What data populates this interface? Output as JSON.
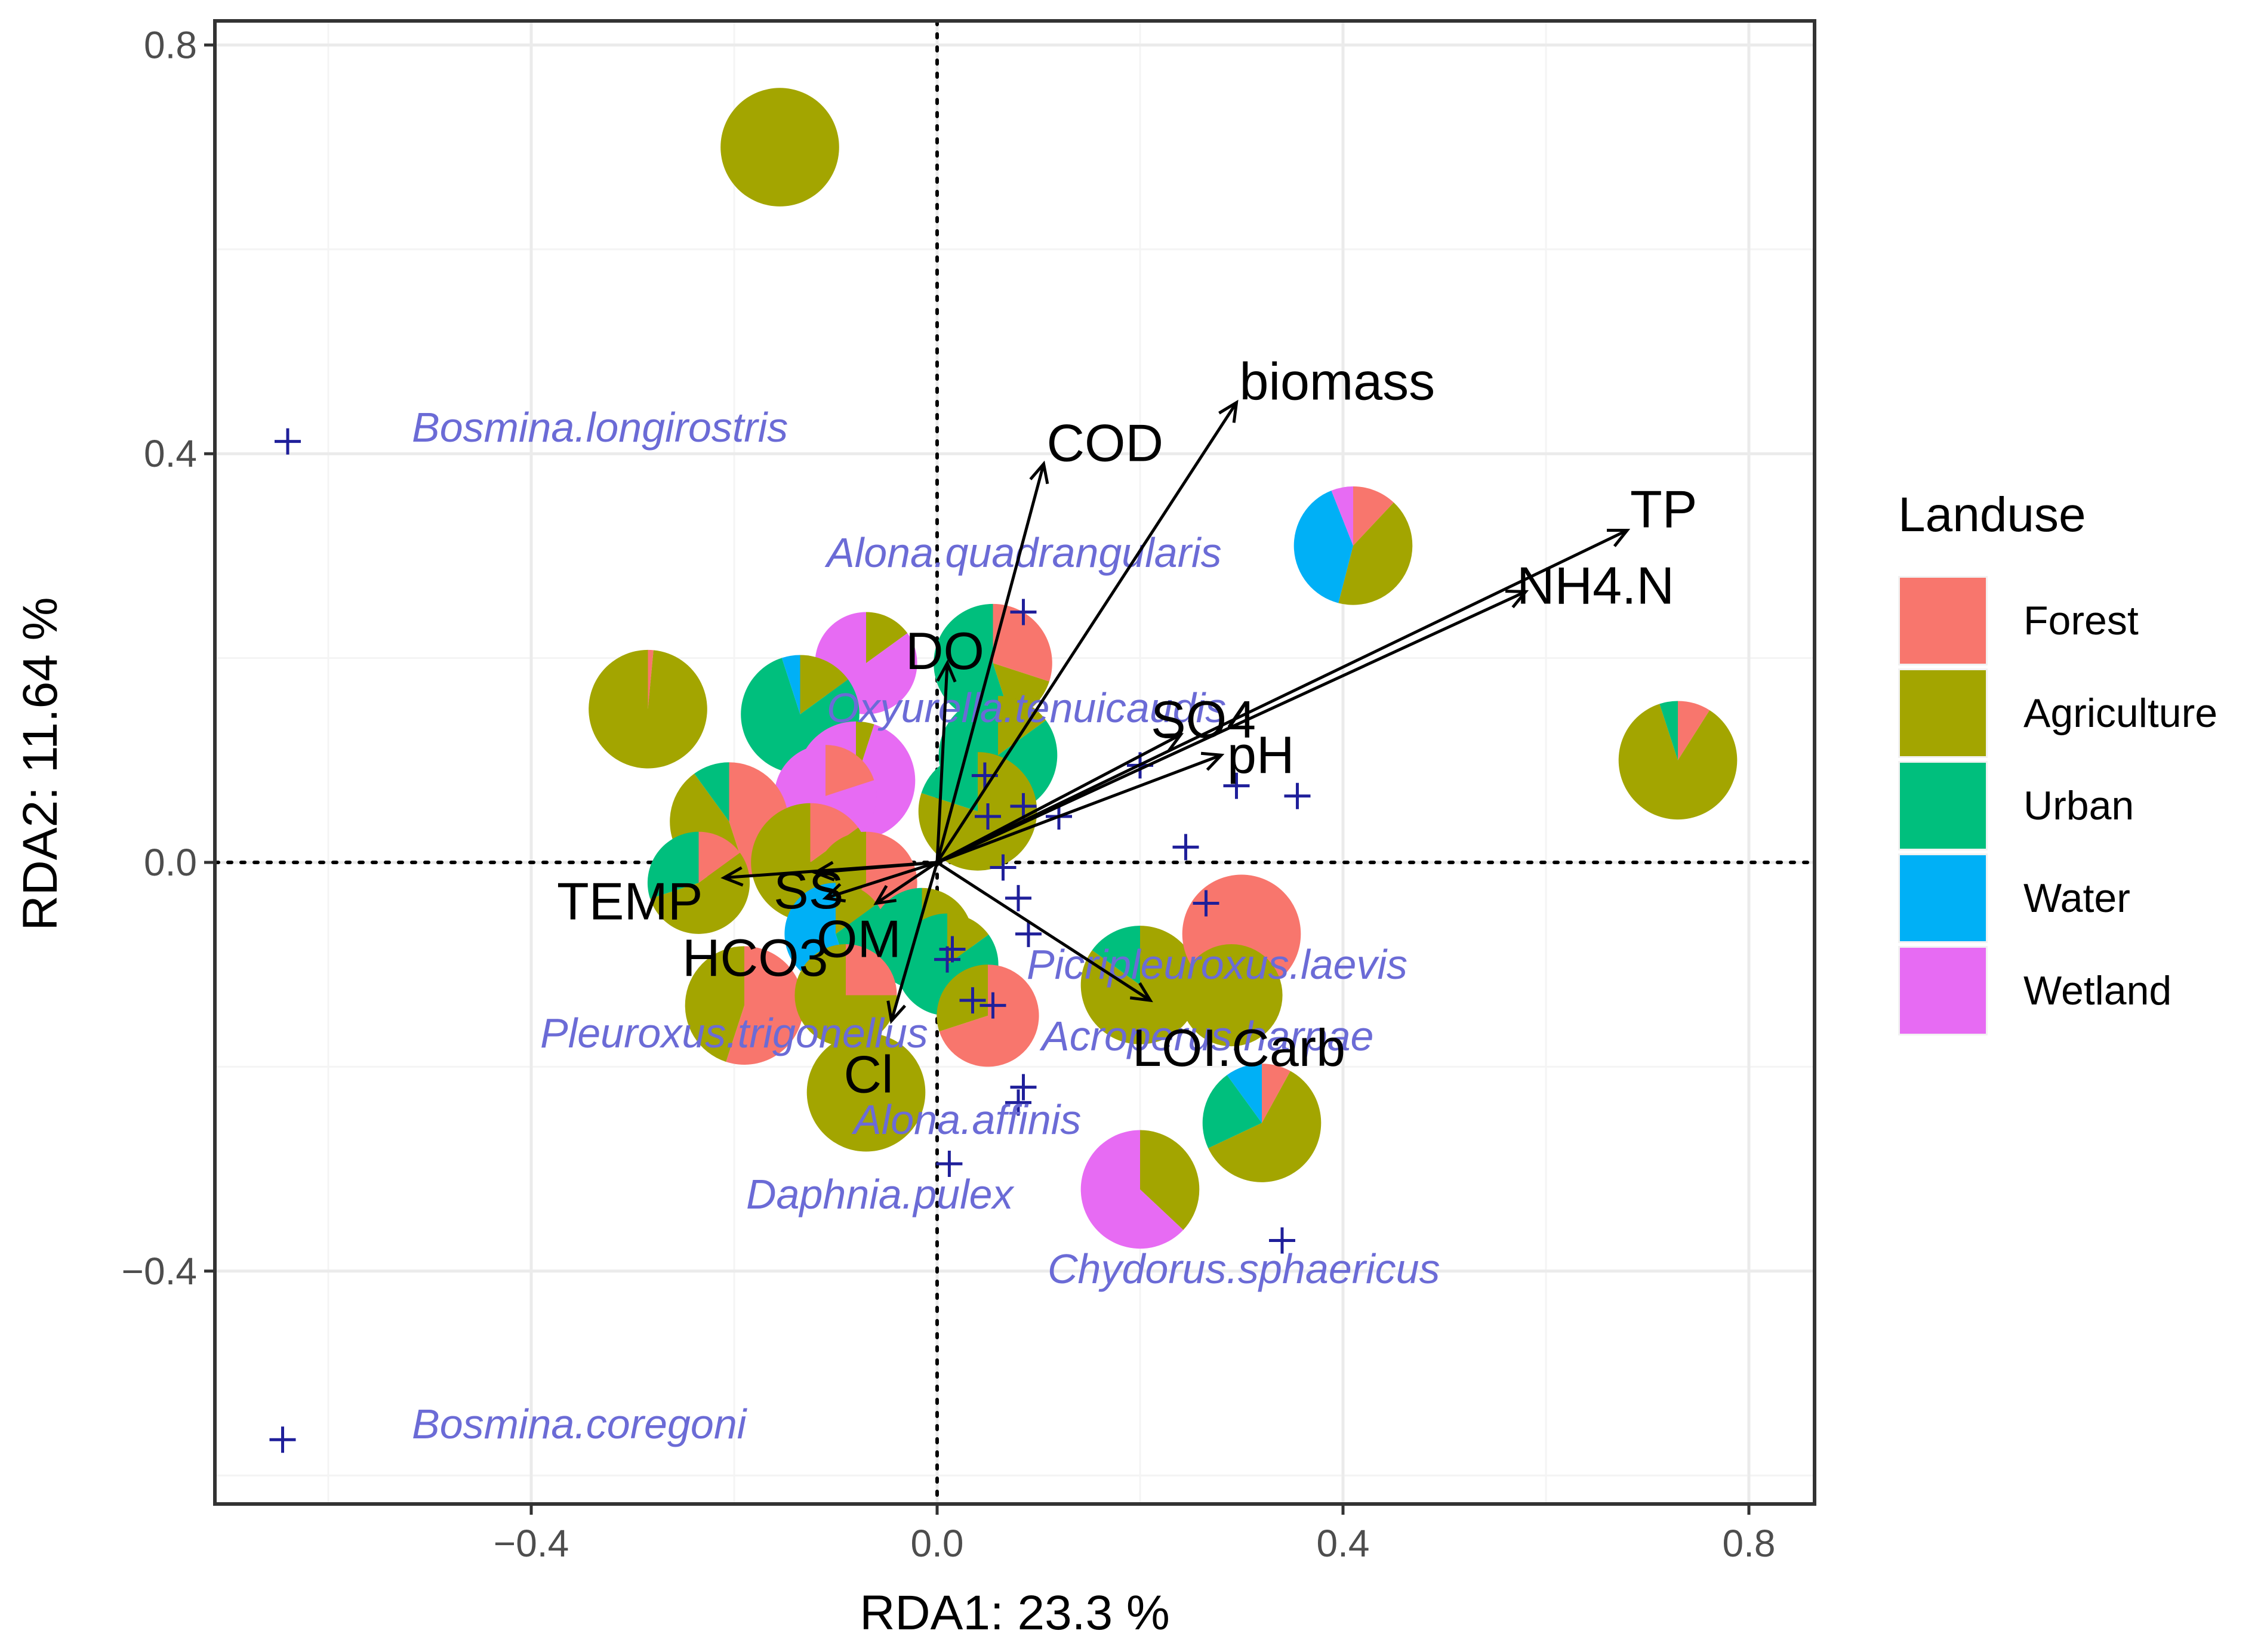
{
  "chart_data": {
    "type": "scatter",
    "xlabel": "RDA1: 23.3 %",
    "ylabel": "RDA2: 11.64 %",
    "xlim": [
      -0.72,
      0.86
    ],
    "ylim": [
      -0.63,
      0.83
    ],
    "x_ticks": [
      -0.4,
      0.0,
      0.4,
      0.8
    ],
    "y_ticks": [
      -0.4,
      0.0,
      0.4,
      0.8
    ],
    "x_tick_labels": [
      "−0.4",
      "0.0",
      "0.4",
      "0.8"
    ],
    "y_tick_labels": [
      "−0.4",
      "0.0",
      "0.4",
      "0.8"
    ],
    "grid": true,
    "reference_lines": {
      "x": 0.0,
      "y": 0.0,
      "style": "dotted"
    },
    "legend": {
      "title": "Landuse",
      "position": "right",
      "entries": [
        {
          "name": "Forest",
          "color": "#F8766D"
        },
        {
          "name": "Agriculture",
          "color": "#A3A500"
        },
        {
          "name": "Urban",
          "color": "#00BF7D"
        },
        {
          "name": "Water",
          "color": "#00B0F6"
        },
        {
          "name": "Wetland",
          "color": "#E76BF3"
        }
      ]
    },
    "env_vectors": [
      {
        "label": "biomass",
        "x": 0.295,
        "y": 0.45
      },
      {
        "label": "COD",
        "x": 0.105,
        "y": 0.39
      },
      {
        "label": "TP",
        "x": 0.68,
        "y": 0.325
      },
      {
        "label": "NH4.N",
        "x": 0.58,
        "y": 0.265
      },
      {
        "label": "DO",
        "x": 0.01,
        "y": 0.195
      },
      {
        "label": "SO4",
        "x": 0.24,
        "y": 0.125
      },
      {
        "label": "pH",
        "x": 0.28,
        "y": 0.105
      },
      {
        "label": "TEMP",
        "x": -0.21,
        "y": -0.015
      },
      {
        "label": "SS",
        "x": -0.12,
        "y": -0.01
      },
      {
        "label": "HCO3",
        "x": -0.11,
        "y": -0.035
      },
      {
        "label": "OM",
        "x": -0.06,
        "y": -0.04
      },
      {
        "label": "Cl",
        "x": -0.045,
        "y": -0.155
      },
      {
        "label": "LOI.Carb",
        "x": 0.21,
        "y": -0.135
      }
    ],
    "species": [
      {
        "name": "Bosmina.longirostris",
        "x": -0.64,
        "y": 0.412
      },
      {
        "name": "Alona.quadrangularis",
        "x": 0.085,
        "y": 0.245
      },
      {
        "name": "Oxyurella.tenuicaudis",
        "x": 0.045,
        "y": 0.085
      },
      {
        "name": "Pleuroxus.trigonellus",
        "x": -0.015,
        "y": -0.09
      },
      {
        "name": "Picripleuroxus.laevis",
        "x": 0.2,
        "y": -0.085
      },
      {
        "name": "Acroperus.harpae",
        "x": 0.065,
        "y": -0.14
      },
      {
        "name": "Alona.affinis",
        "x": 0.09,
        "y": -0.225
      },
      {
        "name": "Daphnia.pulex",
        "x": 0.012,
        "y": -0.295
      },
      {
        "name": "Chydorus.sphaericus",
        "x": 0.34,
        "y": -0.37
      },
      {
        "name": "Bosmina.coregoni",
        "x": -0.645,
        "y": -0.565
      }
    ],
    "sites": [
      {
        "x": -0.155,
        "y": 0.7,
        "r": 0.058,
        "composition": {
          "Agriculture": 1.0
        }
      },
      {
        "x": -0.285,
        "y": 0.15,
        "r": 0.058,
        "composition": {
          "Agriculture": 0.985,
          "Forest": 0.015
        }
      },
      {
        "x": 0.41,
        "y": 0.31,
        "r": 0.058,
        "composition": {
          "Forest": 0.12,
          "Agriculture": 0.42,
          "Water": 0.4,
          "Wetland": 0.06
        }
      },
      {
        "x": 0.73,
        "y": 0.1,
        "r": 0.058,
        "composition": {
          "Forest": 0.09,
          "Agriculture": 0.86,
          "Urban": 0.05
        }
      },
      {
        "x": 0.055,
        "y": 0.195,
        "r": 0.058,
        "composition": {
          "Forest": 0.3,
          "Agriculture": 0.15,
          "Urban": 0.55
        }
      },
      {
        "x": -0.07,
        "y": 0.195,
        "r": 0.05,
        "composition": {
          "Wetland": 0.85,
          "Agriculture": 0.15
        }
      },
      {
        "x": -0.135,
        "y": 0.145,
        "r": 0.058,
        "composition": {
          "Urban": 0.8,
          "Agriculture": 0.15,
          "Water": 0.05
        }
      },
      {
        "x": 0.06,
        "y": 0.105,
        "r": 0.058,
        "composition": {
          "Urban": 0.85,
          "Agriculture": 0.15
        }
      },
      {
        "x": -0.08,
        "y": 0.08,
        "r": 0.058,
        "composition": {
          "Wetland": 0.95,
          "Agriculture": 0.05
        }
      },
      {
        "x": -0.11,
        "y": 0.065,
        "r": 0.05,
        "composition": {
          "Wetland": 0.8,
          "Forest": 0.2
        }
      },
      {
        "x": -0.205,
        "y": 0.04,
        "r": 0.058,
        "composition": {
          "Forest": 0.45,
          "Agriculture": 0.45,
          "Urban": 0.1
        }
      },
      {
        "x": 0.04,
        "y": 0.05,
        "r": 0.058,
        "composition": {
          "Agriculture": 0.8,
          "Urban": 0.2
        }
      },
      {
        "x": -0.235,
        "y": -0.02,
        "r": 0.05,
        "composition": {
          "Agriculture": 0.55,
          "Urban": 0.3,
          "Forest": 0.15
        }
      },
      {
        "x": -0.125,
        "y": 0.0,
        "r": 0.058,
        "composition": {
          "Agriculture": 0.85,
          "Forest": 0.15
        }
      },
      {
        "x": -0.07,
        "y": -0.02,
        "r": 0.05,
        "composition": {
          "Forest": 0.6,
          "Agriculture": 0.4
        }
      },
      {
        "x": -0.1,
        "y": -0.07,
        "r": 0.05,
        "composition": {
          "Water": 0.55,
          "Urban": 0.3,
          "Agriculture": 0.15
        }
      },
      {
        "x": -0.015,
        "y": -0.075,
        "r": 0.05,
        "composition": {
          "Urban": 0.6,
          "Agriculture": 0.4
        }
      },
      {
        "x": 0.01,
        "y": -0.1,
        "r": 0.05,
        "composition": {
          "Urban": 0.85,
          "Agriculture": 0.15
        }
      },
      {
        "x": 0.05,
        "y": -0.15,
        "r": 0.05,
        "composition": {
          "Forest": 0.7,
          "Agriculture": 0.3
        }
      },
      {
        "x": -0.19,
        "y": -0.14,
        "r": 0.058,
        "composition": {
          "Forest": 0.55,
          "Agriculture": 0.45
        }
      },
      {
        "x": -0.09,
        "y": -0.13,
        "r": 0.05,
        "composition": {
          "Agriculture": 0.75,
          "Forest": 0.25
        }
      },
      {
        "x": 0.2,
        "y": -0.12,
        "r": 0.058,
        "composition": {
          "Agriculture": 0.85,
          "Urban": 0.15
        }
      },
      {
        "x": 0.3,
        "y": -0.07,
        "r": 0.058,
        "composition": {
          "Forest": 1.0
        }
      },
      {
        "x": 0.29,
        "y": -0.13,
        "r": 0.05,
        "composition": {
          "Agriculture": 1.0
        }
      },
      {
        "x": -0.07,
        "y": -0.225,
        "r": 0.058,
        "composition": {
          "Agriculture": 1.0
        }
      },
      {
        "x": 0.32,
        "y": -0.255,
        "r": 0.058,
        "composition": {
          "Agriculture": 0.6,
          "Urban": 0.22,
          "Water": 0.1,
          "Forest": 0.08
        }
      },
      {
        "x": 0.2,
        "y": -0.32,
        "r": 0.058,
        "composition": {
          "Wetland": 0.63,
          "Agriculture": 0.37
        }
      }
    ],
    "site_points": [
      {
        "x": 0.085,
        "y": 0.245
      },
      {
        "x": 0.047,
        "y": 0.085
      },
      {
        "x": 0.05,
        "y": 0.045
      },
      {
        "x": 0.085,
        "y": 0.055
      },
      {
        "x": 0.12,
        "y": 0.045
      },
      {
        "x": 0.2,
        "y": 0.095
      },
      {
        "x": 0.295,
        "y": 0.075
      },
      {
        "x": 0.355,
        "y": 0.065
      },
      {
        "x": 0.245,
        "y": 0.015
      },
      {
        "x": 0.065,
        "y": -0.005
      },
      {
        "x": 0.08,
        "y": -0.035
      },
      {
        "x": 0.09,
        "y": -0.07
      },
      {
        "x": 0.015,
        "y": -0.085
      },
      {
        "x": 0.01,
        "y": -0.095
      },
      {
        "x": 0.035,
        "y": -0.135
      },
      {
        "x": 0.055,
        "y": -0.14
      },
      {
        "x": 0.08,
        "y": -0.235
      },
      {
        "x": 0.085,
        "y": -0.22
      },
      {
        "x": 0.012,
        "y": -0.295
      },
      {
        "x": 0.265,
        "y": -0.04
      },
      {
        "x": 0.34,
        "y": -0.37
      },
      {
        "x": -0.64,
        "y": 0.412
      },
      {
        "x": -0.645,
        "y": -0.565
      }
    ]
  }
}
